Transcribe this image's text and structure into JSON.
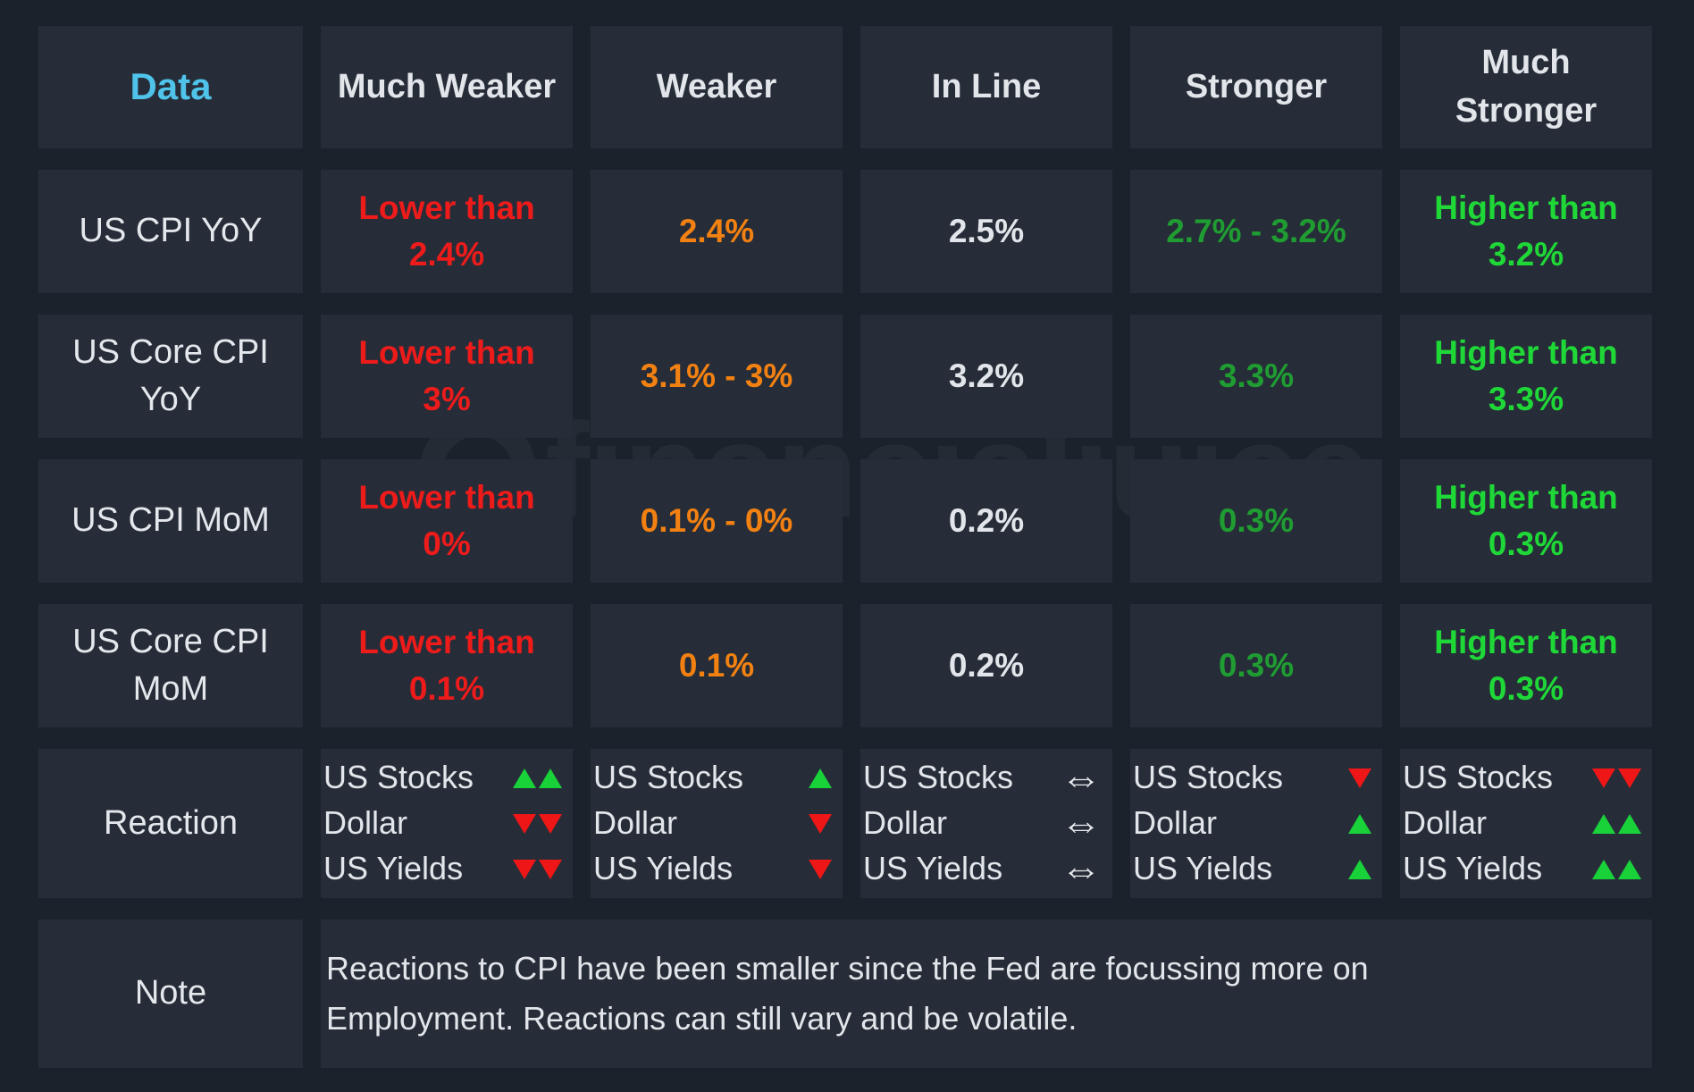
{
  "watermark": "financialjuice",
  "headers": [
    "Data",
    "Much Weaker",
    "Weaker",
    "In Line",
    "Stronger",
    "Much Stronger"
  ],
  "rows": [
    {
      "label": "US CPI YoY",
      "values": [
        "Lower than 2.4%",
        "2.4%",
        "2.5%",
        "2.7% - 3.2%",
        "Higher than 3.2%"
      ]
    },
    {
      "label": "US Core CPI YoY",
      "values": [
        "Lower than 3%",
        "3.1% - 3%",
        "3.2%",
        "3.3%",
        "Higher than 3.3%"
      ]
    },
    {
      "label": "US CPI MoM",
      "values": [
        "Lower than 0%",
        "0.1% - 0%",
        "0.2%",
        "0.3%",
        "Higher than 0.3%"
      ]
    },
    {
      "label": "US Core CPI MoM",
      "values": [
        "Lower than 0.1%",
        "0.1%",
        "0.2%",
        "0.3%",
        "Higher than 0.3%"
      ]
    }
  ],
  "value_colors": [
    "#ee1b1b",
    "#f28112",
    "#e2e5ea",
    "#1f9d32",
    "#1fd838"
  ],
  "reaction": {
    "label": "Reaction",
    "assets": [
      "US Stocks",
      "Dollar",
      "US Yields"
    ],
    "columns": [
      [
        {
          "icon": "double-up-icon"
        },
        {
          "icon": "double-down-icon"
        },
        {
          "icon": "double-down-icon"
        }
      ],
      [
        {
          "icon": "up-icon"
        },
        {
          "icon": "down-icon"
        },
        {
          "icon": "down-icon"
        }
      ],
      [
        {
          "icon": "left-right-icon"
        },
        {
          "icon": "left-right-icon"
        },
        {
          "icon": "left-right-icon"
        }
      ],
      [
        {
          "icon": "down-icon"
        },
        {
          "icon": "up-icon"
        },
        {
          "icon": "up-icon"
        }
      ],
      [
        {
          "icon": "double-down-icon"
        },
        {
          "icon": "double-up-icon"
        },
        {
          "icon": "double-up-icon"
        }
      ]
    ]
  },
  "note": {
    "label": "Note",
    "line1": "Reactions to CPI have been smaller since the Fed are focussing more on",
    "line2": "Employment. Reactions can still vary and be volatile."
  }
}
